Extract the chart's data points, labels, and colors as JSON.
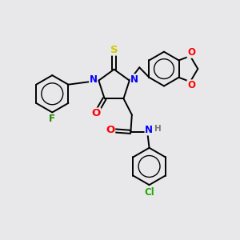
{
  "bg_color": "#e8e8eb",
  "line_color": "#000000",
  "line_width": 1.4,
  "font_size": 8.5,
  "atom_colors": {
    "N": "#0000ff",
    "O": "#ff0000",
    "S": "#cccc00",
    "F": "#228800",
    "Cl": "#22aa00",
    "H": "#777777",
    "C": "#000000"
  },
  "figsize": [
    3.0,
    3.0
  ],
  "dpi": 100
}
